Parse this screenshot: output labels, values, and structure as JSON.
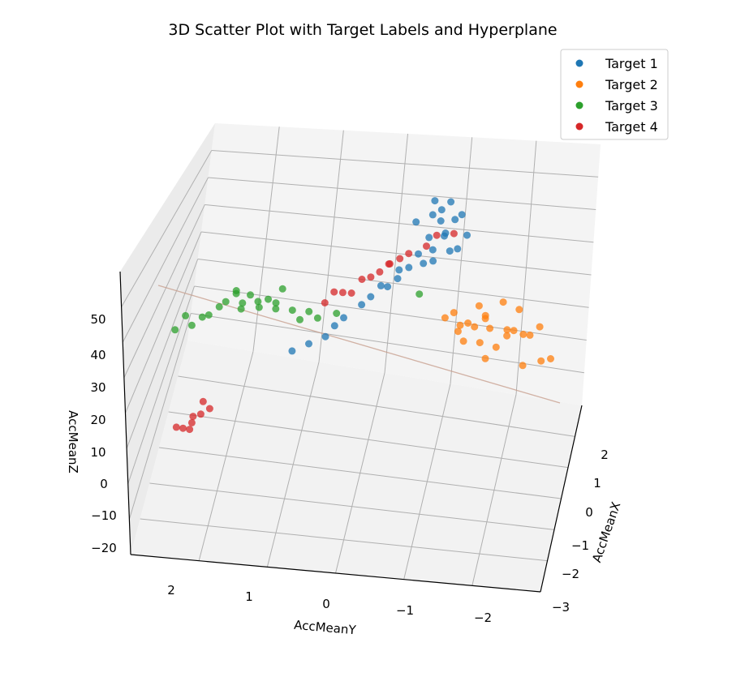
{
  "chart_data": {
    "type": "scatter",
    "title": "3D Scatter Plot with Target Labels and Hyperplane",
    "xlabel": "AccMeanX",
    "ylabel": "AccMeanY",
    "zlabel": "AccMeanZ",
    "x_ticks": [
      "−3",
      "−2",
      "−1",
      "0",
      "1",
      "2"
    ],
    "y_ticks": [
      "2",
      "1",
      "0",
      "−1",
      "−2"
    ],
    "z_ticks": [
      "−20",
      "−10",
      "0",
      "10",
      "20",
      "30",
      "40",
      "50"
    ],
    "legend_position": "top-right",
    "grid": true,
    "series": [
      {
        "name": "Target 1",
        "color": "#1f77b4",
        "x": [
          2.2,
          2.0,
          1.9,
          2.1,
          2.2,
          1.8,
          1.7,
          1.6,
          1.9,
          2.0,
          1.5,
          1.4,
          1.8,
          2.3,
          2.1,
          1.7,
          1.3,
          1.2,
          0.9,
          0.6,
          0.4,
          0.3,
          0.5,
          0.7,
          1.0,
          1.1,
          1.6,
          2.0,
          2.2,
          1.9
        ],
        "y": [
          -0.6,
          -0.7,
          -0.5,
          -0.8,
          -0.6,
          -0.9,
          -0.4,
          -0.6,
          -1.0,
          -0.3,
          -0.5,
          -0.2,
          -0.8,
          -0.7,
          -0.5,
          -0.6,
          -0.2,
          0.0,
          0.2,
          0.5,
          0.8,
          1.0,
          0.6,
          0.4,
          0.1,
          -0.1,
          -0.3,
          -0.9,
          -0.5,
          -0.7
        ],
        "z": [
          38,
          36,
          35,
          40,
          42,
          33,
          31,
          34,
          37,
          39,
          30,
          28,
          32,
          44,
          41,
          29,
          26,
          24,
          20,
          15,
          10,
          8,
          12,
          17,
          22,
          25,
          27,
          43,
          45,
          36
        ]
      },
      {
        "name": "Target 2",
        "color": "#ff7f0e",
        "x": [
          0.2,
          0.1,
          0.3,
          -0.1,
          0.0,
          0.4,
          0.2,
          -0.2,
          0.1,
          0.5,
          0.3,
          -0.3,
          0.0,
          0.2,
          0.6,
          -0.1,
          0.1,
          -0.4,
          0.3,
          0.4,
          -0.2,
          0.2,
          0.0,
          -0.5,
          0.1
        ],
        "y": [
          -1.1,
          -1.3,
          -1.5,
          -1.2,
          -1.6,
          -1.4,
          -1.8,
          -1.5,
          -1.9,
          -1.7,
          -2.0,
          -1.3,
          -1.4,
          -2.1,
          -1.9,
          -1.7,
          -1.2,
          -1.6,
          -1.5,
          -2.2,
          -2.3,
          -1.8,
          -2.4,
          -2.1,
          -1.0
        ],
        "z": [
          28,
          26,
          27,
          25,
          26,
          29,
          24,
          23,
          25,
          30,
          22,
          24,
          26,
          23,
          27,
          21,
          25,
          20,
          26,
          24,
          19,
          22,
          18,
          20,
          27
        ]
      },
      {
        "name": "Target 3",
        "color": "#2ca02c",
        "x": [
          -0.8,
          -0.7,
          -0.9,
          -0.6,
          -1.0,
          -0.8,
          -0.5,
          -0.7,
          -0.9,
          -1.1,
          -0.6,
          -0.8,
          -0.4,
          -0.7,
          -1.0,
          -0.9,
          -0.5,
          -0.3,
          -0.8,
          -0.6,
          -1.2,
          -0.7,
          0.0,
          0.5
        ],
        "y": [
          1.5,
          1.3,
          1.7,
          1.1,
          1.9,
          1.4,
          0.9,
          1.6,
          2.0,
          2.1,
          1.2,
          1.8,
          0.7,
          1.0,
          2.2,
          1.5,
          0.8,
          0.6,
          1.3,
          1.1,
          2.3,
          1.6,
          0.4,
          -0.6
        ],
        "z": [
          35,
          33,
          36,
          34,
          32,
          38,
          31,
          37,
          30,
          29,
          35,
          33,
          30,
          40,
          31,
          34,
          28,
          27,
          36,
          32,
          28,
          38,
          26,
          30
        ]
      },
      {
        "name": "Target 4",
        "color": "#d62728",
        "x": [
          1.5,
          1.2,
          1.0,
          0.8,
          0.5,
          0.3,
          1.7,
          1.9,
          2.1,
          1.4,
          0.9,
          0.6,
          -1.6,
          -1.7,
          -1.5,
          -1.8,
          -1.6,
          -1.4,
          -1.7,
          -1.9,
          1.1,
          0.4
        ],
        "y": [
          -0.3,
          -0.1,
          0.0,
          0.2,
          0.4,
          0.6,
          -0.5,
          -0.6,
          -0.8,
          -0.2,
          0.1,
          0.3,
          1.9,
          2.0,
          1.8,
          2.1,
          2.0,
          1.9,
          2.2,
          2.0,
          -0.1,
          0.5
        ],
        "z": [
          33,
          32,
          31,
          30,
          28,
          26,
          34,
          36,
          35,
          32,
          30,
          27,
          5,
          3,
          6,
          2,
          4,
          7,
          1,
          3,
          33,
          29
        ]
      }
    ]
  }
}
